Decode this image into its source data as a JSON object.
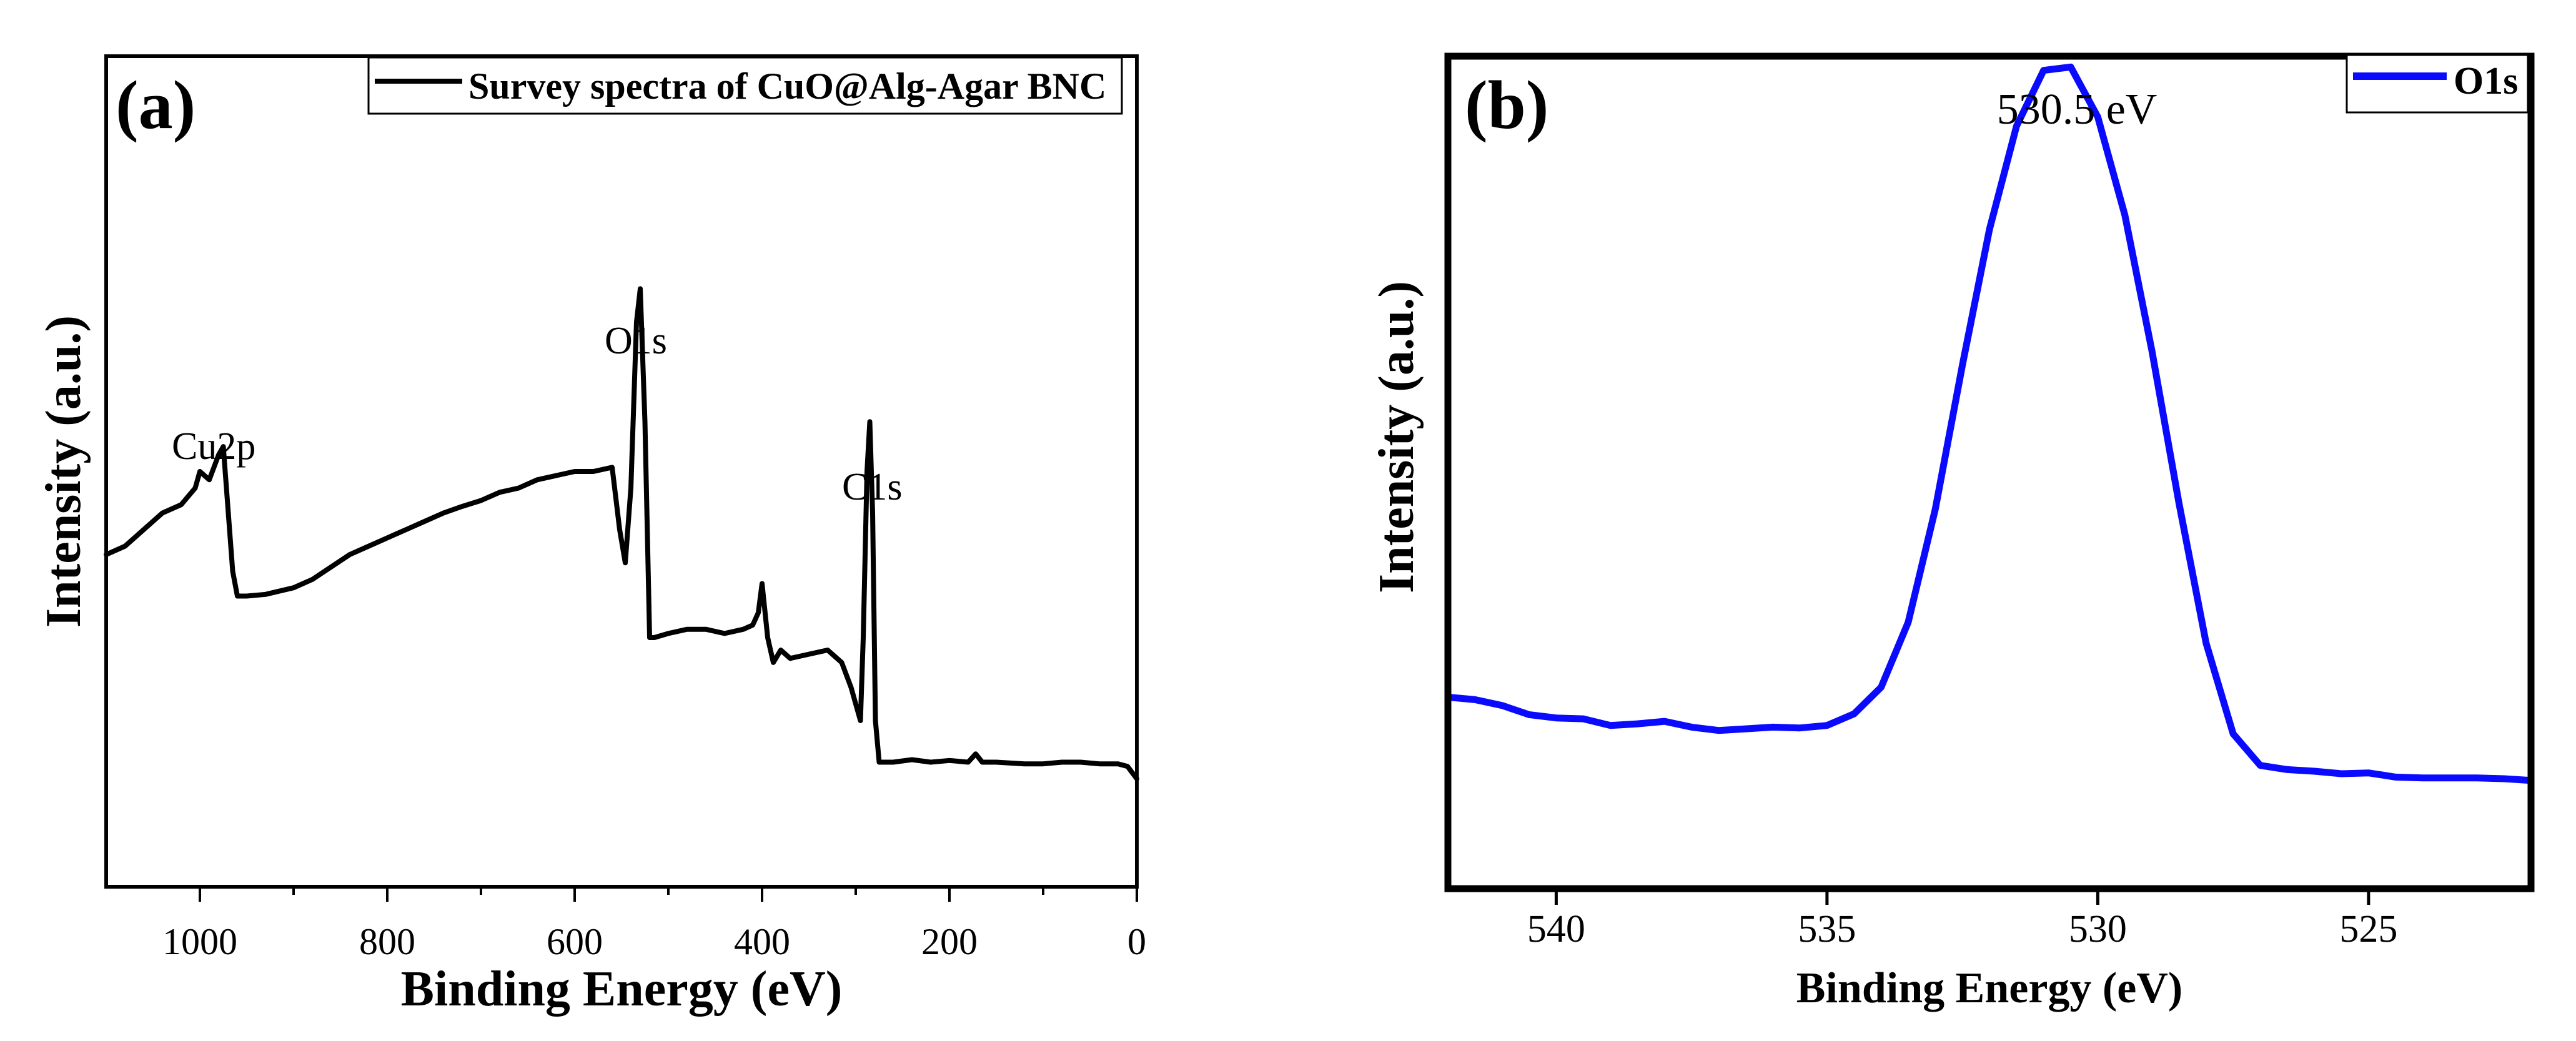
{
  "chart_data": [
    {
      "type": "line",
      "panel_label": "(a)",
      "title": "",
      "xlabel": "Binding Energy (eV)",
      "ylabel": "Intensity (a.u.)",
      "xlim": [
        1100,
        0
      ],
      "ylim": [
        0,
        100
      ],
      "x_reversed": true,
      "xticks": [
        1000,
        800,
        600,
        400,
        200,
        0
      ],
      "xtick_labels": [
        "1000",
        "800",
        "600",
        "400",
        "200",
        "0"
      ],
      "legend": {
        "position": "top-right",
        "entries": [
          {
            "label": "Survey spectra of CuO@Alg-Agar BNC",
            "color": "#000000"
          }
        ]
      },
      "annotations": [
        {
          "text": "Cu2p",
          "x": 985,
          "y": 55
        },
        {
          "text": "O1s",
          "x": 520,
          "y": 72
        },
        {
          "text": "C1s",
          "x": 280,
          "y": 51
        }
      ],
      "series": [
        {
          "name": "Survey spectra of CuO@Alg-Agar BNC",
          "color": "#000000",
          "x": [
            1100,
            1080,
            1060,
            1040,
            1020,
            1005,
            1000,
            990,
            980,
            975,
            965,
            960,
            950,
            930,
            900,
            880,
            860,
            840,
            820,
            800,
            780,
            760,
            740,
            720,
            700,
            680,
            660,
            640,
            620,
            600,
            580,
            560,
            552,
            546,
            540,
            534,
            530,
            525,
            520,
            515,
            500,
            480,
            460,
            440,
            420,
            410,
            404,
            400,
            394,
            388,
            380,
            370,
            350,
            330,
            315,
            305,
            295,
            292,
            288,
            285,
            282,
            279,
            275,
            260,
            240,
            220,
            200,
            180,
            172,
            165,
            150,
            120,
            100,
            80,
            60,
            40,
            20,
            10,
            0
          ],
          "values": [
            40,
            41,
            43,
            45,
            46,
            48,
            50,
            49,
            52,
            53,
            38,
            35,
            35,
            35.2,
            36,
            37,
            38.5,
            40,
            41,
            42,
            43,
            44,
            45,
            45.8,
            46.5,
            47.5,
            48,
            49,
            49.5,
            50,
            50,
            50.5,
            43,
            39,
            48,
            68,
            72,
            56,
            30,
            30,
            30.5,
            31,
            31,
            30.5,
            31,
            31.5,
            33,
            36.5,
            30,
            27,
            28.5,
            27.5,
            28,
            28.5,
            27,
            24,
            20,
            30,
            50,
            56,
            45,
            20,
            15,
            15,
            15.3,
            15,
            15.2,
            15,
            16,
            15,
            15,
            14.8,
            14.8,
            15,
            15,
            14.8,
            14.8,
            14.5,
            13
          ]
        }
      ]
    },
    {
      "type": "line",
      "panel_label": "(b)",
      "title": "",
      "xlabel": "Binding Energy (eV)",
      "ylabel": "Intensity (a.u.)",
      "xlim": [
        542,
        522
      ],
      "ylim": [
        0,
        100
      ],
      "x_reversed": true,
      "xticks": [
        540,
        535,
        530,
        525
      ],
      "xtick_labels": [
        "540",
        "535",
        "530",
        "525"
      ],
      "legend": {
        "position": "top-right",
        "entries": [
          {
            "label": "O1s",
            "color": "#0a0aff"
          }
        ]
      },
      "annotations": [
        {
          "text": "530.5 eV",
          "x": 530.5,
          "y": 94
        }
      ],
      "series": [
        {
          "name": "O1s",
          "color": "#0a0aff",
          "x": [
            542,
            541.5,
            541,
            540.5,
            540,
            539.5,
            539,
            538.5,
            538,
            537.5,
            537,
            536.5,
            536,
            535.5,
            535,
            534.5,
            534,
            533.5,
            533,
            532.5,
            532,
            531.5,
            531,
            530.5,
            530,
            529.5,
            529,
            528.5,
            528,
            527.5,
            527,
            526.5,
            526,
            525.5,
            525,
            524.5,
            524,
            523.5,
            523,
            522.5,
            522
          ],
          "values": [
            23.0,
            22.7,
            22.0,
            20.9,
            20.5,
            20.4,
            19.6,
            19.8,
            20.1,
            19.4,
            19.0,
            19.2,
            19.4,
            19.3,
            19.6,
            21.0,
            24.2,
            32.0,
            45.6,
            62.9,
            79.2,
            91.6,
            98.3,
            98.7,
            92.7,
            80.9,
            64.6,
            46.3,
            29.5,
            18.6,
            14.8,
            14.3,
            14.1,
            13.8,
            13.9,
            13.4,
            13.3,
            13.3,
            13.3,
            13.2,
            13.0
          ]
        }
      ]
    }
  ]
}
